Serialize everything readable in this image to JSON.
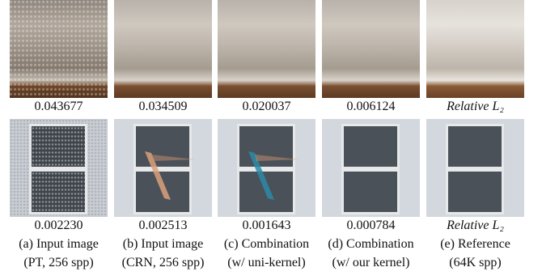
{
  "rows": [
    {
      "values": [
        "0.043677",
        "0.034509",
        "0.020037",
        "0.006124"
      ],
      "metric": "Relative L₂"
    },
    {
      "values": [
        "0.002230",
        "0.002513",
        "0.001643",
        "0.000784"
      ],
      "metric": "Relative L₂"
    }
  ],
  "captions": [
    {
      "line1": "(a) Input image",
      "line2": "(PT, 256 spp)"
    },
    {
      "line1": "(b) Input image",
      "line2": "(CRN, 256 spp)"
    },
    {
      "line1": "(c) Combination",
      "line2": "(w/ uni-kernel)"
    },
    {
      "line1": "(d) Combination",
      "line2": "(w/ our kernel)"
    },
    {
      "line1": "(e) Reference",
      "line2": "(64K spp)"
    }
  ]
}
